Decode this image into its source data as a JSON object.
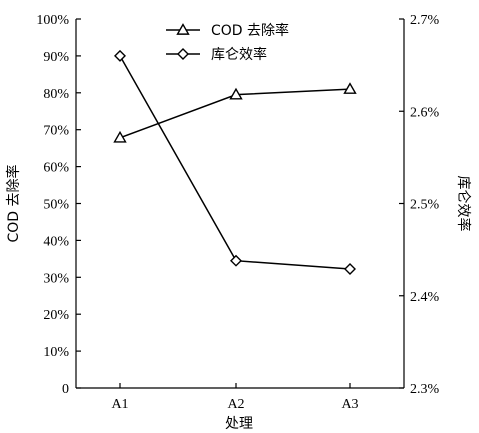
{
  "chart_data": {
    "type": "line",
    "categories": [
      "A1",
      "A2",
      "A3"
    ],
    "xlabel": "处理",
    "ylabel_left": "COD 去除率",
    "ylabel_right": "库仑效率",
    "left_axis": {
      "ylim": [
        0,
        100
      ],
      "ticks": [
        0,
        10,
        20,
        30,
        40,
        50,
        60,
        70,
        80,
        90,
        100
      ],
      "tick_labels": [
        "0",
        "10%",
        "20%",
        "30%",
        "40%",
        "50%",
        "60%",
        "70%",
        "80%",
        "90%",
        "100%"
      ]
    },
    "right_axis": {
      "ylim": [
        2.3,
        2.7
      ],
      "ticks": [
        2.3,
        2.4,
        2.5,
        2.6,
        2.7
      ],
      "tick_labels": [
        "2.3%",
        "2.4%",
        "2.5%",
        "2.6%",
        "2.7%"
      ]
    },
    "series": [
      {
        "name": "COD 去除率",
        "axis": "left",
        "marker": "triangle",
        "values": [
          67.8,
          79.5,
          81.0
        ]
      },
      {
        "name": "库仑效率",
        "axis": "right",
        "marker": "diamond",
        "values": [
          2.66,
          2.438,
          2.429
        ]
      }
    ],
    "legend_position": "top-center",
    "grid": false
  }
}
